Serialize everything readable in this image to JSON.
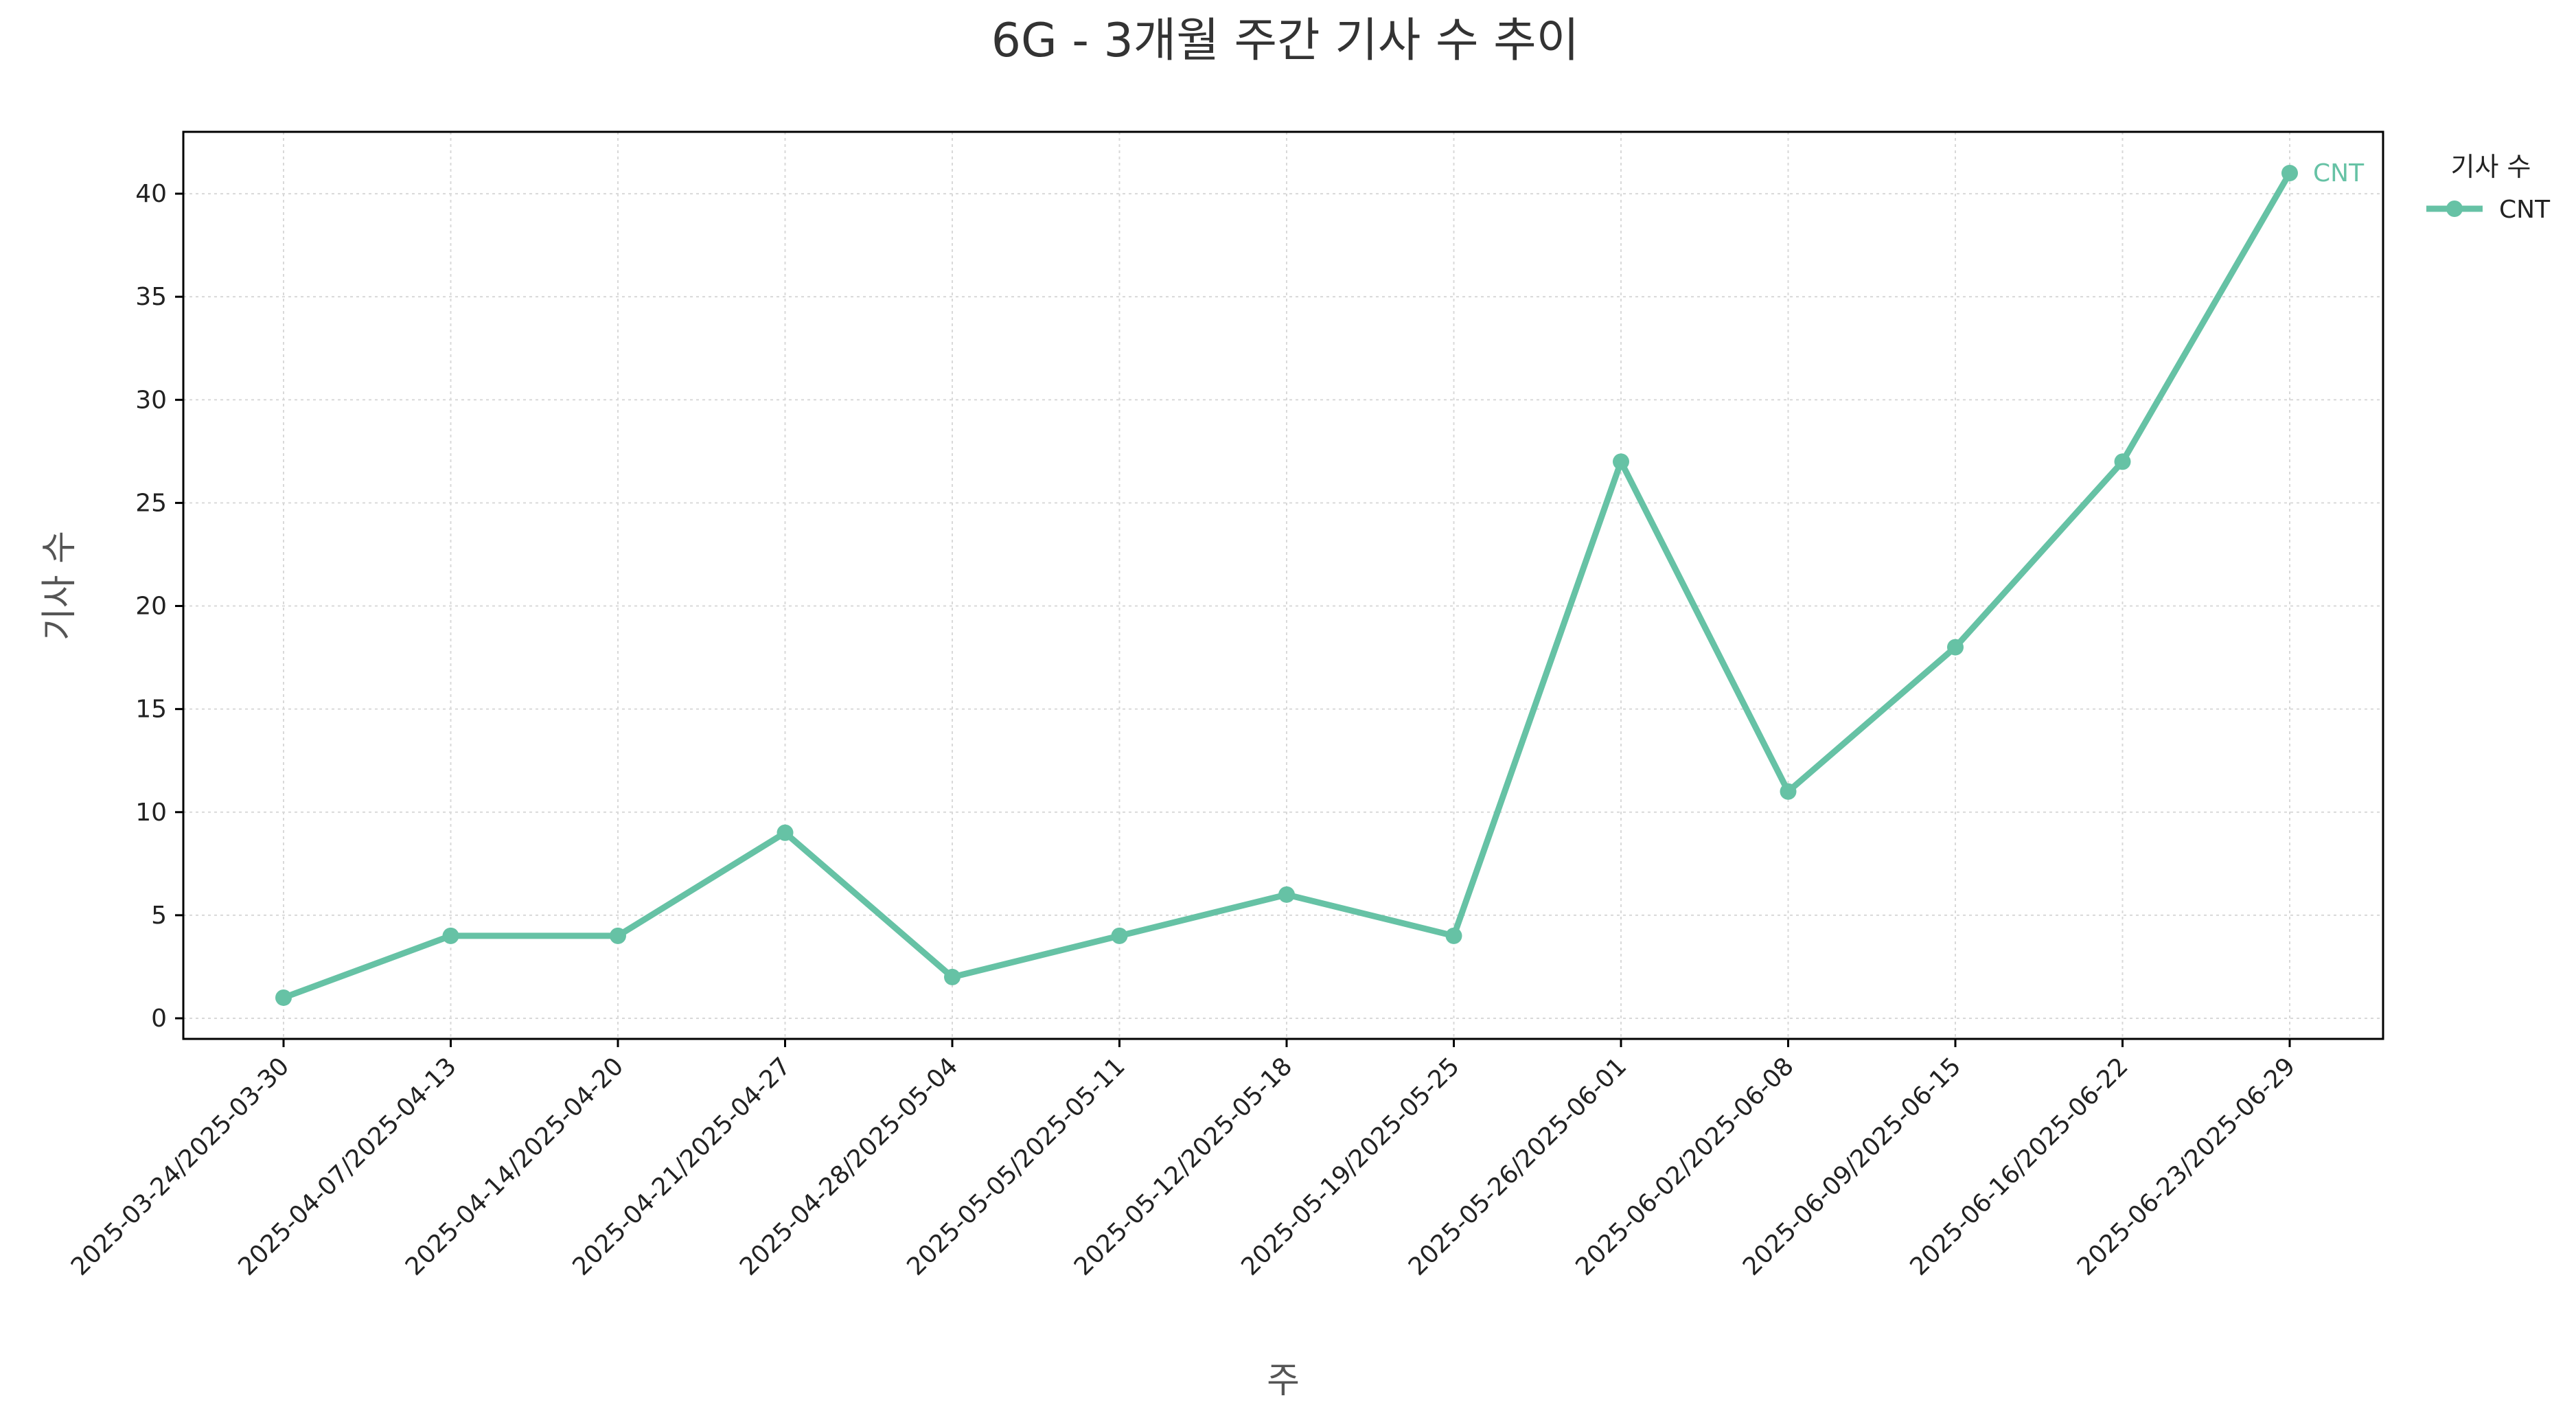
{
  "chart_data": {
    "type": "line",
    "title": "6G - 3개월 주간 기사 수 추이",
    "xlabel": "주",
    "ylabel": "기사 수",
    "categories": [
      "2025-03-24/2025-03-30",
      "2025-04-07/2025-04-13",
      "2025-04-14/2025-04-20",
      "2025-04-21/2025-04-27",
      "2025-04-28/2025-05-04",
      "2025-05-05/2025-05-11",
      "2025-05-12/2025-05-18",
      "2025-05-19/2025-05-25",
      "2025-05-26/2025-06-01",
      "2025-06-02/2025-06-08",
      "2025-06-09/2025-06-15",
      "2025-06-16/2025-06-22",
      "2025-06-23/2025-06-29"
    ],
    "series": [
      {
        "name": "CNT",
        "color": "#66c2a5",
        "values": [
          1,
          4,
          4,
          9,
          2,
          4,
          6,
          4,
          27,
          11,
          18,
          27,
          41
        ]
      }
    ],
    "ylim": [
      -1,
      43
    ],
    "yticks": [
      0,
      5,
      10,
      15,
      20,
      25,
      30,
      35,
      40
    ],
    "grid": true,
    "legend": {
      "title": "기사 수",
      "placement": "outside-top-right"
    },
    "end_label": "CNT"
  }
}
